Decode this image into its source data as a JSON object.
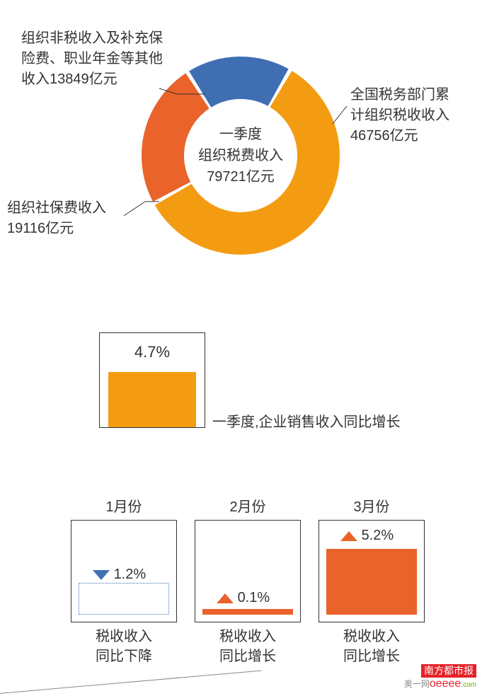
{
  "colors": {
    "orange": "#f39c12",
    "deep_orange": "#e9632b",
    "blue": "#3f6fb2",
    "text": "#333333",
    "frame": "#333333"
  },
  "donut": {
    "center_l1": "一季度",
    "center_l2": "组织税费收入",
    "center_l3": "79721亿元",
    "inner_radius": 80,
    "outer_radius": 140,
    "slices": [
      {
        "value": 46756,
        "color": "#f39c12",
        "label_l1": "全国税务部门累",
        "label_l2": "计组织税收收入",
        "label_l3": "46756亿元"
      },
      {
        "value": 19116,
        "color": "#e9632b",
        "label_l1": "组织社保费收入",
        "label_l2": "19116亿元",
        "label_l3": ""
      },
      {
        "value": 13849,
        "color": "#3f6fb2",
        "label_l1": "组织非税收入及补充保",
        "label_l2": "险费、职业年金等其他",
        "label_l3": "收入13849亿元"
      }
    ]
  },
  "q1_box": {
    "pct": "4.7%",
    "fill_color": "#f39c12",
    "label": "一季度,企业销售收入同比增长"
  },
  "months": [
    {
      "title": "1月份",
      "pct": "1.2%",
      "direction": "down",
      "color": "#3f6fb2",
      "label_l1": "税收收入",
      "label_l2": "同比下降"
    },
    {
      "title": "2月份",
      "pct": "0.1%",
      "direction": "up",
      "color": "#e9632b",
      "label_l1": "税收收入",
      "label_l2": "同比增长"
    },
    {
      "title": "3月份",
      "pct": "5.2%",
      "direction": "up",
      "color": "#e9632b",
      "label_l1": "税收收入",
      "label_l2": "同比增长"
    }
  ],
  "footer": {
    "brand": "南方都市报",
    "sub1": "奥一网",
    "sub2": "oeeee",
    "sub3": ".com"
  }
}
